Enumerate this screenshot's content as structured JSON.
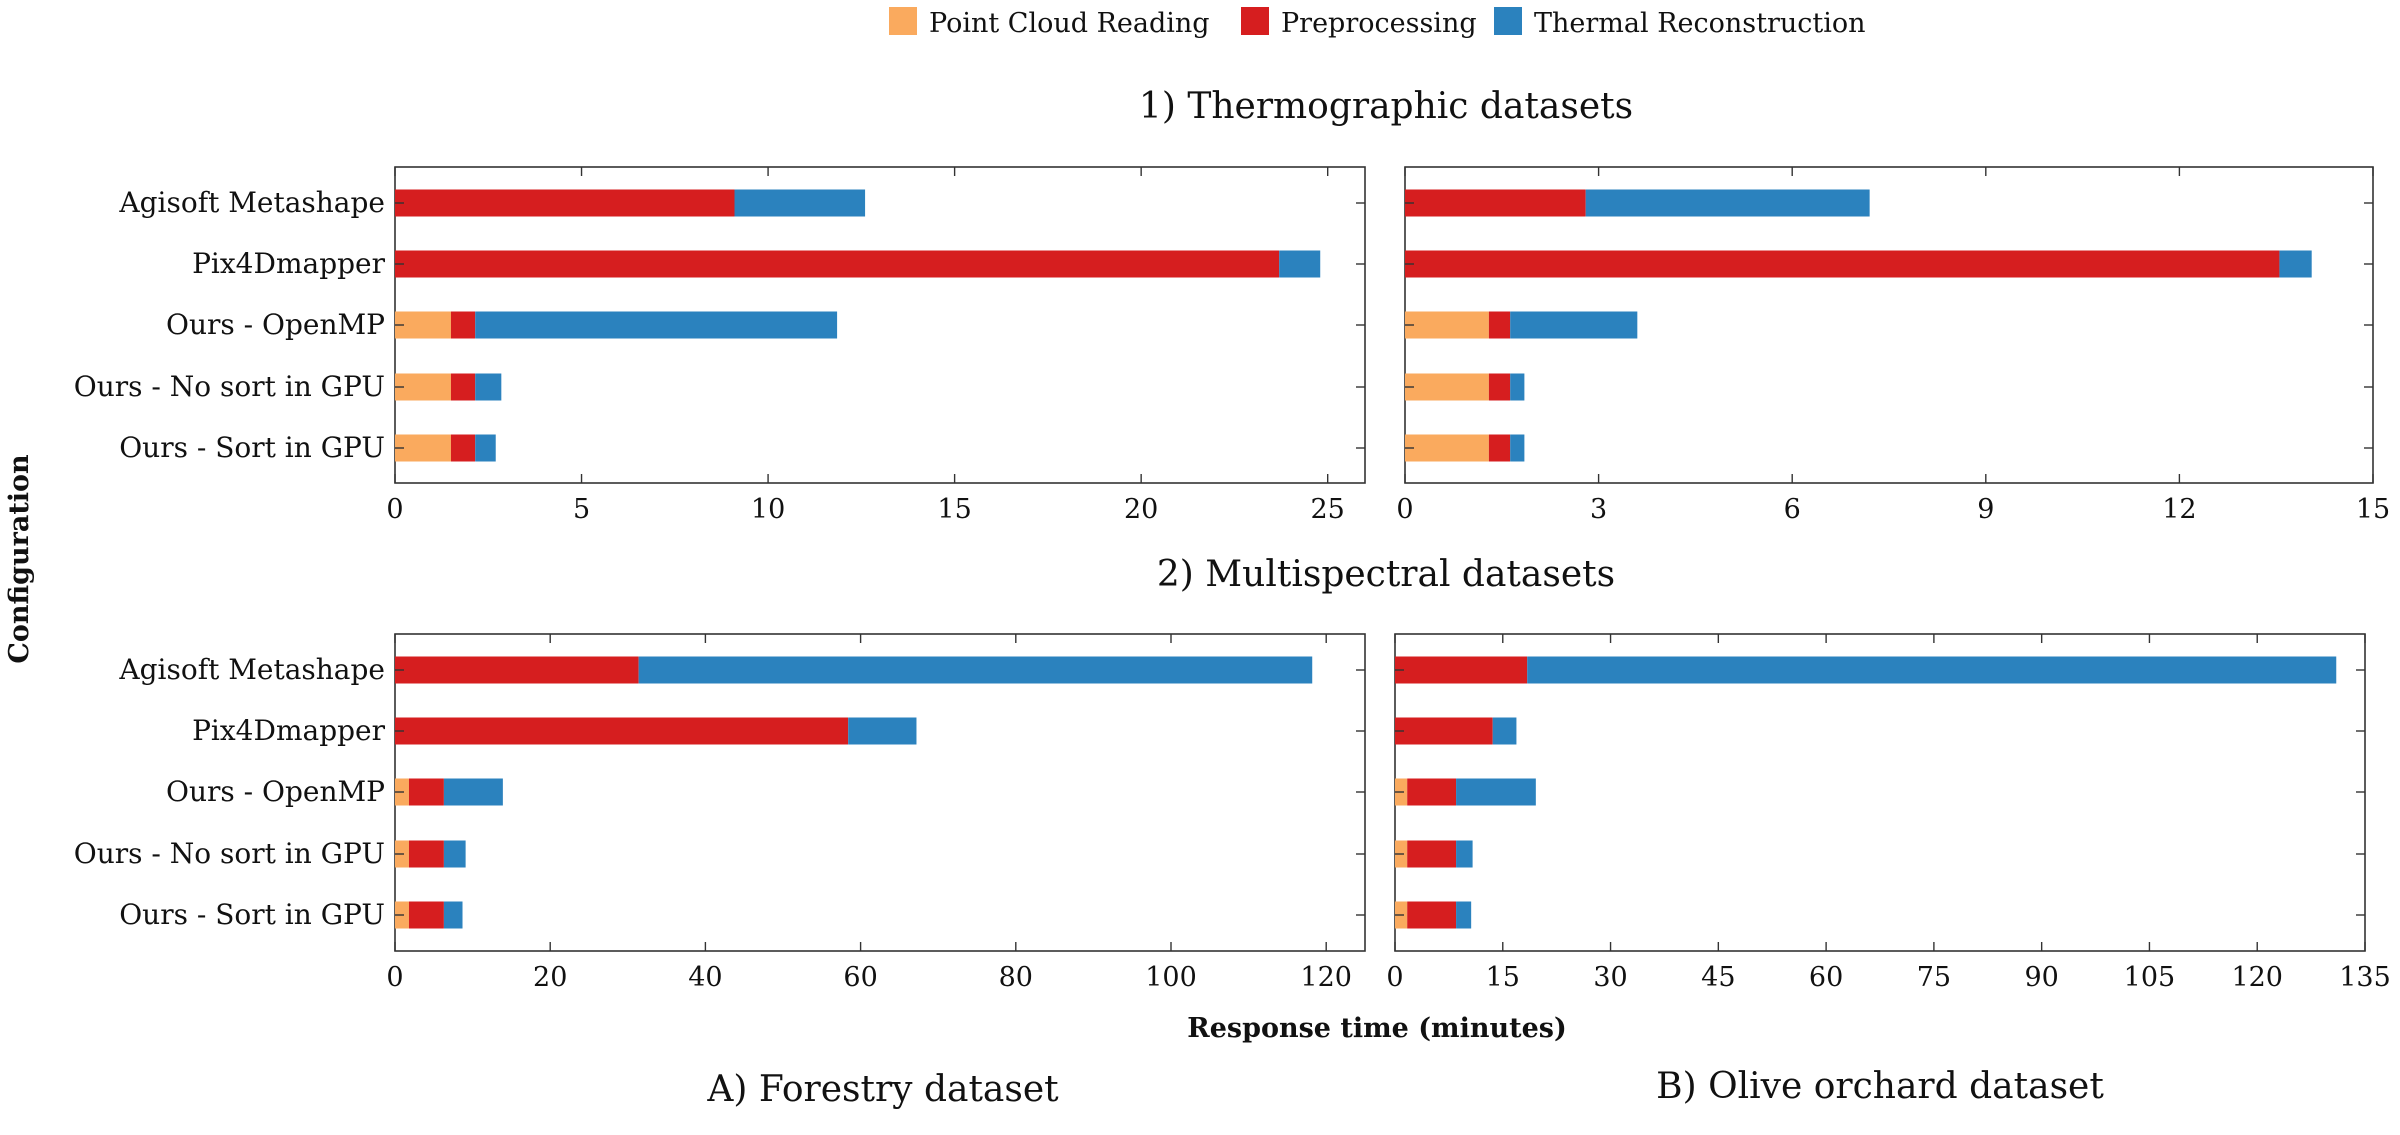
{
  "legend": [
    {
      "name": "Point Cloud Reading",
      "color": "#FAAA5E"
    },
    {
      "name": "Preprocessing",
      "color": "#D61E1F"
    },
    {
      "name": "Thermal Reconstruction",
      "color": "#2B82BE"
    }
  ],
  "row_titles": [
    "1) Thermographic datasets",
    "2) Multispectral datasets"
  ],
  "column_titles": [
    "A) Forestry dataset",
    "B) Olive orchard dataset"
  ],
  "y_axis_label": "Configuration",
  "x_axis_label": "Response time (minutes)",
  "chart_data": [
    {
      "type": "bar",
      "orientation": "horizontal",
      "stacked": true,
      "row": "1) Thermographic datasets",
      "column": "A) Forestry dataset",
      "categories": [
        "Agisoft Metashape",
        "Pix4Dmapper",
        "Ours - OpenMP",
        "Ours - No sort in GPU",
        "Ours - Sort in GPU"
      ],
      "series": [
        {
          "name": "Point Cloud Reading",
          "values": [
            0,
            0,
            1.5,
            1.5,
            1.5
          ]
        },
        {
          "name": "Preprocessing",
          "values": [
            9.1,
            23.7,
            0.65,
            0.65,
            0.65
          ]
        },
        {
          "name": "Thermal Reconstruction",
          "values": [
            3.5,
            1.1,
            9.7,
            0.7,
            0.55
          ]
        }
      ],
      "xlim": [
        0,
        26
      ],
      "xticks": [
        0,
        5,
        10,
        15,
        20,
        25
      ]
    },
    {
      "type": "bar",
      "orientation": "horizontal",
      "stacked": true,
      "row": "1) Thermographic datasets",
      "column": "B) Olive orchard dataset",
      "categories": [
        "Agisoft Metashape",
        "Pix4Dmapper",
        "Ours - OpenMP",
        "Ours - No sort in GPU",
        "Ours - Sort in GPU"
      ],
      "series": [
        {
          "name": "Point Cloud Reading",
          "values": [
            0,
            0,
            1.3,
            1.3,
            1.3
          ]
        },
        {
          "name": "Preprocessing",
          "values": [
            2.8,
            13.55,
            0.33,
            0.33,
            0.33
          ]
        },
        {
          "name": "Thermal Reconstruction",
          "values": [
            4.4,
            0.5,
            1.97,
            0.22,
            0.22
          ]
        }
      ],
      "xlim": [
        0,
        15
      ],
      "xticks": [
        0,
        3,
        6,
        9,
        12,
        15
      ]
    },
    {
      "type": "bar",
      "orientation": "horizontal",
      "stacked": true,
      "row": "2) Multispectral datasets",
      "column": "A) Forestry dataset",
      "categories": [
        "Agisoft Metashape",
        "Pix4Dmapper",
        "Ours - OpenMP",
        "Ours - No sort in GPU",
        "Ours - Sort in GPU"
      ],
      "series": [
        {
          "name": "Point Cloud Reading",
          "values": [
            0,
            0,
            1.8,
            1.8,
            1.8
          ]
        },
        {
          "name": "Preprocessing",
          "values": [
            31.4,
            58.4,
            4.5,
            4.5,
            4.5
          ]
        },
        {
          "name": "Thermal Reconstruction",
          "values": [
            86.8,
            8.8,
            7.6,
            2.8,
            2.4
          ]
        }
      ],
      "xlim": [
        0,
        125
      ],
      "xticks": [
        0,
        20,
        40,
        60,
        80,
        100,
        120
      ]
    },
    {
      "type": "bar",
      "orientation": "horizontal",
      "stacked": true,
      "row": "2) Multispectral datasets",
      "column": "B) Olive orchard dataset",
      "categories": [
        "Agisoft Metashape",
        "Pix4Dmapper",
        "Ours - OpenMP",
        "Ours - No sort in GPU",
        "Ours - Sort in GPU"
      ],
      "series": [
        {
          "name": "Point Cloud Reading",
          "values": [
            0,
            0,
            1.7,
            1.7,
            1.7
          ]
        },
        {
          "name": "Preprocessing",
          "values": [
            18.4,
            13.6,
            6.8,
            6.8,
            6.8
          ]
        },
        {
          "name": "Thermal Reconstruction",
          "values": [
            112.6,
            3.3,
            11.1,
            2.3,
            2.1
          ]
        }
      ],
      "xlim": [
        0,
        135
      ],
      "xticks": [
        0,
        15,
        30,
        45,
        60,
        75,
        90,
        105,
        120,
        135
      ]
    }
  ]
}
